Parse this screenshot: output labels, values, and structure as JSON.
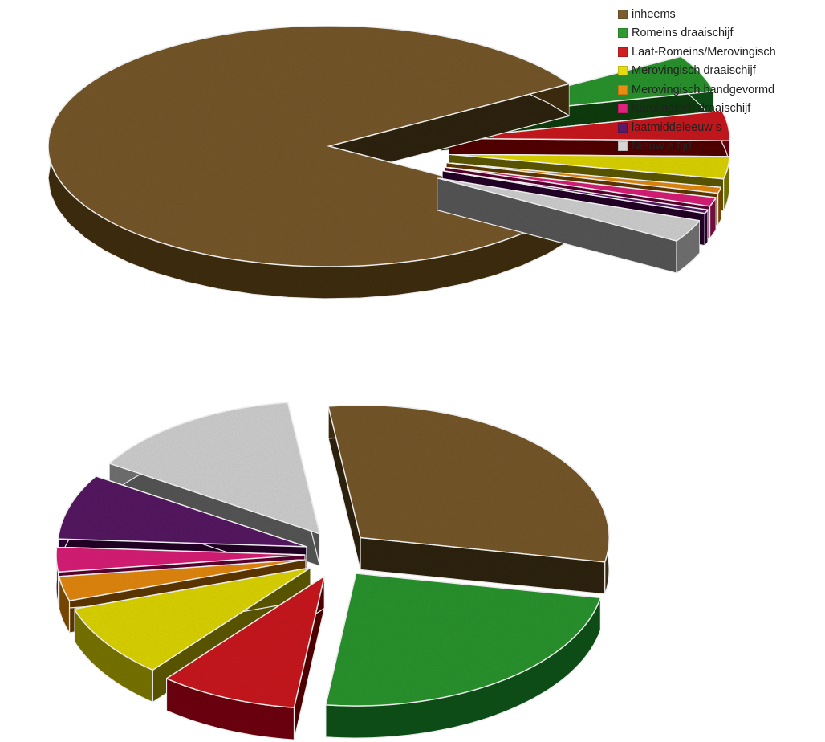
{
  "chart_data": [
    {
      "type": "pie",
      "style": "3d-exploded",
      "title": "",
      "legend_position": "top-right",
      "categories": [
        "inheems",
        "Romeins draaischijf",
        "Laat-Romeins/Merovingisch",
        "Merovingisch draaischijf",
        "Merovingisch handgevormd",
        "Karolingisch draaischijf",
        "laatmiddeleeuw s",
        "Nieuw e tijd"
      ],
      "values": [
        83,
        5,
        4,
        3,
        0.8,
        1.2,
        0.5,
        3
      ],
      "exploded": [
        "Romeins draaischijf",
        "Laat-Romeins/Merovingisch",
        "Merovingisch draaischijf",
        "Merovingisch handgevormd",
        "Karolingisch draaischijf",
        "laatmiddeleeuw s",
        "Nieuw e tijd"
      ]
    },
    {
      "type": "pie",
      "style": "3d-exploded",
      "title": "",
      "categories": [
        "inheems",
        "Romeins draaischijf",
        "Laat-Romeins/Merovingisch",
        "Merovingisch draaischijf",
        "Merovingisch handgevormd",
        "Karolingisch draaischijf",
        "laatmiddeleeuw s",
        "Nieuw e tijd"
      ],
      "values": [
        30,
        24,
        9,
        9,
        3,
        3,
        8,
        14
      ],
      "exploded": [
        "inheems",
        "Romeins draaischijf",
        "Laat-Romeins/Merovingisch",
        "Merovingisch draaischijf",
        "Merovingisch handgevormd",
        "Karolingisch draaischijf",
        "laatmiddeleeuw s",
        "Nieuw e tijd"
      ]
    }
  ],
  "legend": [
    {
      "label": "inheems",
      "color": "#7a5c2e"
    },
    {
      "label": "Romeins draaischijf",
      "color": "#2e9a30"
    },
    {
      "label": "Laat-Romeins/Merovingisch",
      "color": "#d01f20"
    },
    {
      "label": "Merovingisch draaischijf",
      "color": "#e4dc10"
    },
    {
      "label": "Merovingisch handgevormd",
      "color": "#ea8c12"
    },
    {
      "label": "Karolingisch draaischijf",
      "color": "#e0227c"
    },
    {
      "label": "laatmiddeleeuw s",
      "color": "#5a1a66"
    },
    {
      "label": "Nieuw e tijd",
      "color": "#d7d7d7"
    }
  ]
}
